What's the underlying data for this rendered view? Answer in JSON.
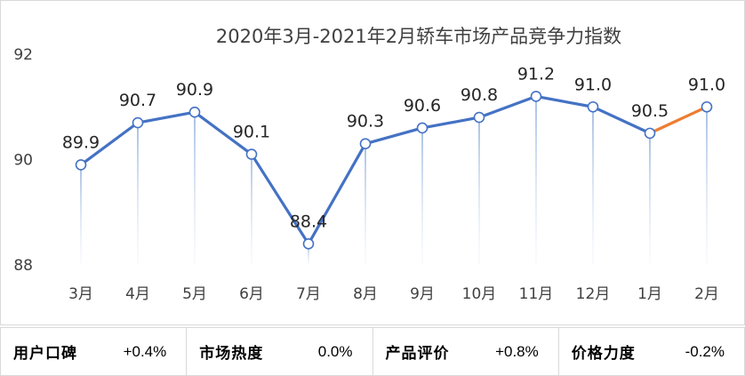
{
  "chart_data": {
    "type": "line",
    "title": "2020年3月-2021年2月轿车市场产品竞争力指数",
    "categories": [
      "3月",
      "4月",
      "5月",
      "6月",
      "7月",
      "8月",
      "9月",
      "10月",
      "11月",
      "12月",
      "1月",
      "2月"
    ],
    "values": [
      89.9,
      90.7,
      90.9,
      90.1,
      88.4,
      90.3,
      90.6,
      90.8,
      91.2,
      91.0,
      90.5,
      91.0
    ],
    "data_labels": [
      "89.9",
      "90.7",
      "90.9",
      "90.1",
      "88.4",
      "90.3",
      "90.6",
      "90.8",
      "91.2",
      "91.0",
      "90.5",
      "91.0"
    ],
    "y_ticks": [
      "88",
      "90",
      "92"
    ],
    "ylim": [
      88,
      92
    ],
    "grid": false,
    "colors": {
      "line": "#4472c4",
      "highlight_segment": "#ed7d31",
      "marker_fill": "#ffffff"
    },
    "highlight_last_segment": true
  },
  "metrics": [
    {
      "name": "用户口碑",
      "value": "+0.4%"
    },
    {
      "name": "市场热度",
      "value": "0.0%"
    },
    {
      "name": "产品评价",
      "value": "+0.8%"
    },
    {
      "name": "价格力度",
      "value": "-0.2%"
    }
  ]
}
